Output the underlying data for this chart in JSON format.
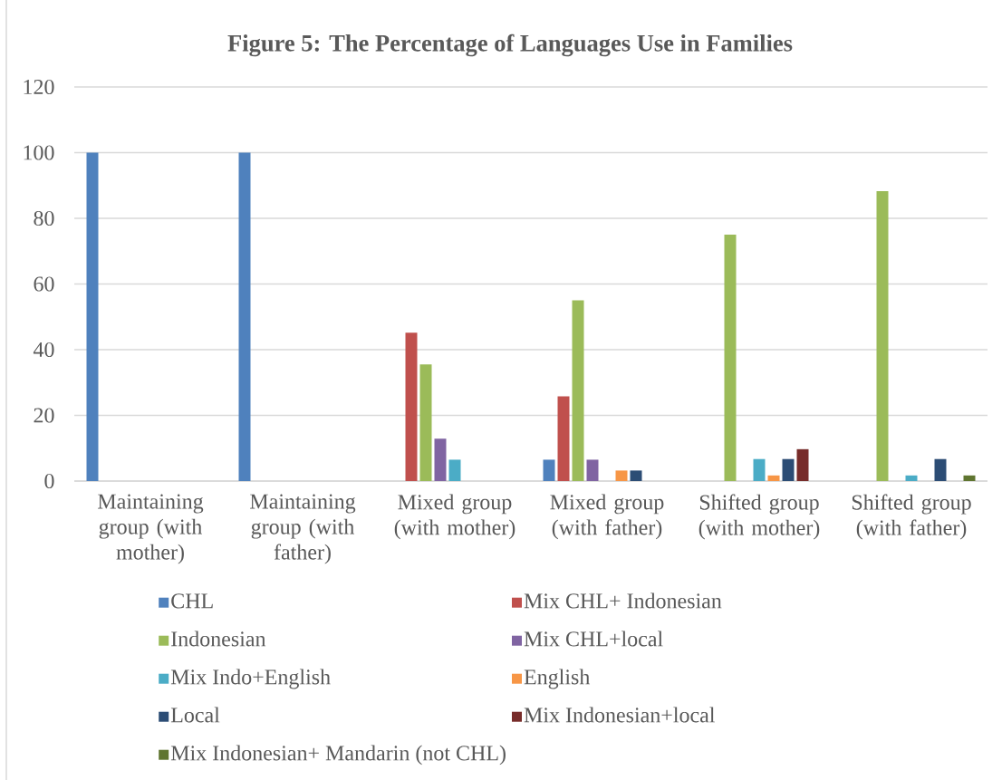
{
  "chart_data": {
    "type": "bar",
    "title": "Figure 5: The Percentage of Languages Use in Families",
    "categories": [
      "Maintaining group (with mother)",
      "Maintaining group (with father)",
      "Mixed group (with mother)",
      "Mixed group (with father)",
      "Shifted group (with mother)",
      "Shifted group (with father)"
    ],
    "series": [
      {
        "name": "CHL",
        "color": "#4f81bd",
        "values": [
          100,
          100,
          null,
          6.5,
          null,
          null
        ]
      },
      {
        "name": "Mix CHL+ Indonesian",
        "color": "#c0504d",
        "values": [
          null,
          null,
          45.2,
          25.8,
          null,
          null
        ]
      },
      {
        "name": "Indonesian",
        "color": "#9bbb59",
        "values": [
          null,
          null,
          35.5,
          55,
          75,
          88.3
        ]
      },
      {
        "name": "Mix CHL+local",
        "color": "#8064a2",
        "values": [
          null,
          null,
          12.9,
          6.5,
          null,
          null
        ]
      },
      {
        "name": "Mix Indo+English",
        "color": "#4bacc6",
        "values": [
          null,
          null,
          6.5,
          null,
          6.7,
          1.7
        ]
      },
      {
        "name": "English",
        "color": "#f79646",
        "values": [
          null,
          null,
          null,
          3.2,
          1.7,
          null
        ]
      },
      {
        "name": "Local",
        "color": "#2c4d75",
        "values": [
          null,
          null,
          null,
          3.2,
          6.7,
          6.7
        ]
      },
      {
        "name": "Mix Indonesian+local",
        "color": "#772c2a",
        "values": [
          null,
          null,
          null,
          null,
          9.7,
          null
        ]
      },
      {
        "name": "Mix Indonesian+ Mandarin (not CHL)",
        "color": "#5f7530",
        "values": [
          null,
          null,
          null,
          null,
          null,
          1.7
        ]
      }
    ],
    "ylim": [
      0,
      120
    ],
    "yticks": [
      0,
      20,
      40,
      60,
      80,
      100,
      120
    ],
    "grid": "y",
    "legend": "bottom"
  }
}
